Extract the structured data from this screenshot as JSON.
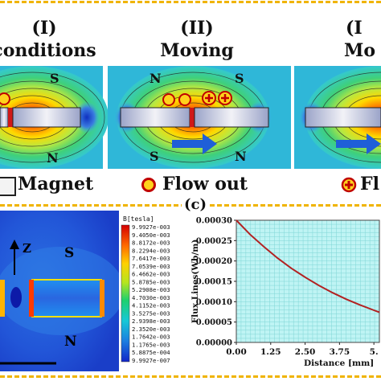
{
  "top_panels": [
    {
      "roman": "(I)",
      "title": "conditions"
    },
    {
      "roman": "(II)",
      "title": "Moving"
    },
    {
      "roman": "(I",
      "title": "Mo"
    }
  ],
  "pole_labels": {
    "south": "S",
    "north": "N"
  },
  "legend": {
    "magnet": "Magnet",
    "flow_out": "Flow out",
    "flow_in_partial": "Fl",
    "colors": {
      "flow_out_fill": "#ffd21c",
      "flow_out_ring": "#c00000",
      "flow_in_fill": "#ffd21c",
      "arrow": "#1f5fd8",
      "dash": "#f0b400"
    }
  },
  "sim_panel": {
    "axis_label": "Z",
    "south": "S",
    "north": "N",
    "colorbar_title": "B[tesla]",
    "colorbar_ticks": [
      "9.9927e-003",
      "9.4050e-003",
      "8.8172e-003",
      "8.2294e-003",
      "7.6417e-003",
      "7.0539e-003",
      "6.4662e-003",
      "5.8785e-003",
      "5.2908e-003",
      "4.7030e-003",
      "4.1152e-003",
      "3.5275e-003",
      "2.9398e-003",
      "2.3520e-003",
      "1.7642e-003",
      "1.1765e-003",
      "5.8875e-004",
      "9.9927e-007"
    ]
  },
  "panel_c_label": "(c)",
  "chart_data": {
    "type": "line",
    "title": "",
    "xlabel": "Distance [mm]",
    "ylabel": "Flux Lines(Wb/m)",
    "x_tick_labels": [
      "0.00",
      "1.25",
      "2.50",
      "3.75",
      "5."
    ],
    "y_tick_labels": [
      "0.00000",
      "0.00005",
      "0.00010",
      "0.00015",
      "0.00020",
      "0.00025",
      "0.00030"
    ],
    "xlim": [
      0,
      5.2
    ],
    "ylim": [
      0,
      0.0003
    ],
    "grid": true,
    "series": [
      {
        "color": "#b22222",
        "x": [
          0,
          0.5,
          1.0,
          1.5,
          2.0,
          2.5,
          3.0,
          3.5,
          4.0,
          4.5,
          5.0,
          5.2
        ],
        "y": [
          0.0003,
          0.000265,
          0.000235,
          0.000207,
          0.000182,
          0.00016,
          0.00014,
          0.000122,
          0.000106,
          9.2e-05,
          7.9e-05,
          7.4e-05
        ]
      }
    ]
  }
}
